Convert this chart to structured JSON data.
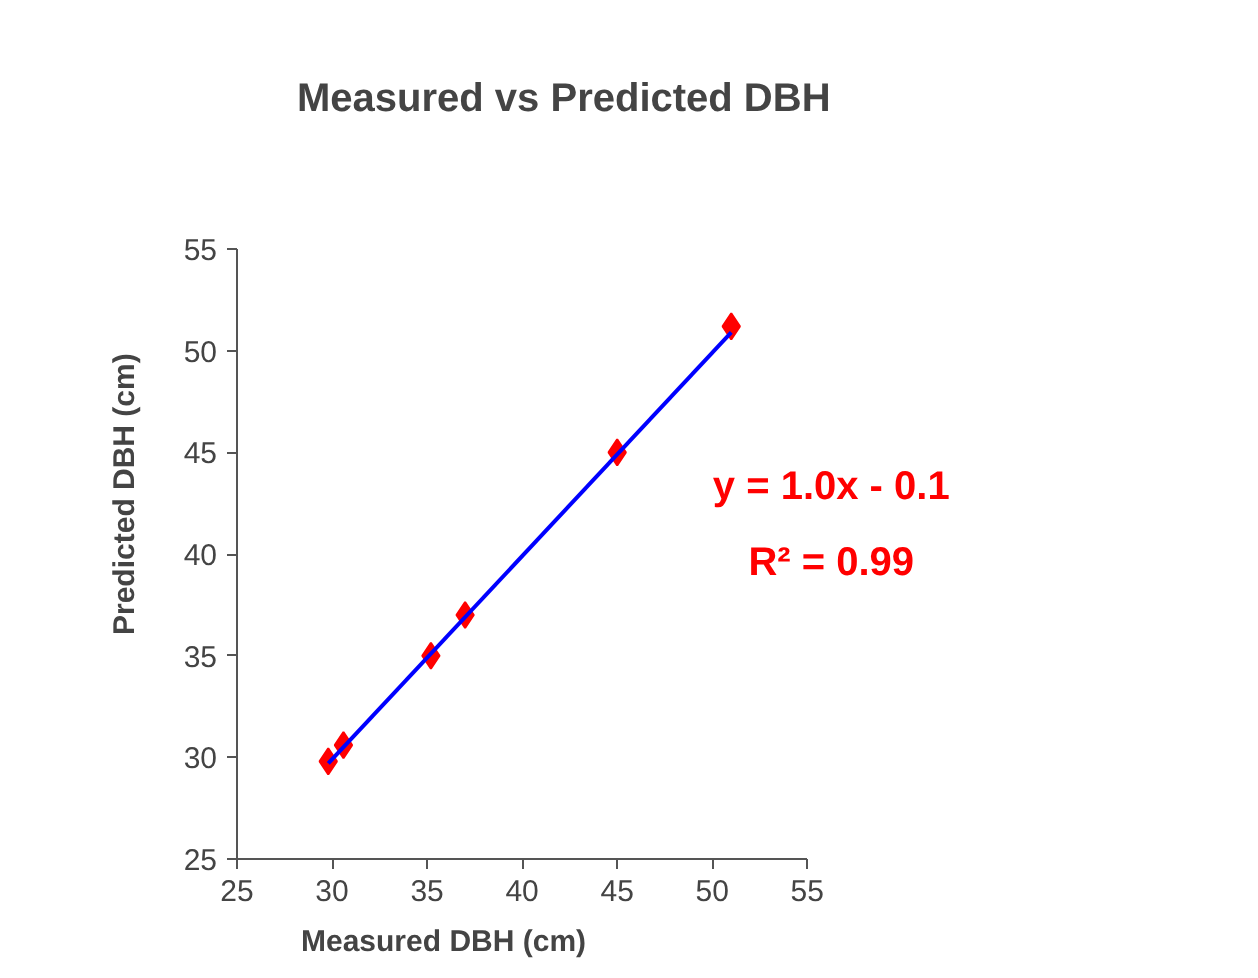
{
  "chart_data": {
    "type": "scatter",
    "title": "Measured vs Predicted DBH",
    "xlabel": "Measured  DBH (cm)",
    "ylabel": "Predicted  DBH (cm)",
    "xlim": [
      25,
      55
    ],
    "ylim": [
      25,
      55
    ],
    "xticks": [
      25,
      30,
      35,
      40,
      45,
      50,
      55
    ],
    "yticks": [
      25,
      30,
      35,
      40,
      45,
      50,
      55
    ],
    "grid": false,
    "series": [
      {
        "color": "#ff0000",
        "marker": "diamond",
        "x": [
          29.8,
          30.6,
          35.2,
          37.0,
          45.0,
          51.0
        ],
        "values": [
          29.8,
          30.6,
          35.0,
          37.0,
          45.0,
          51.2
        ]
      },
      {
        "type": "line",
        "color": "#0000ff",
        "marker": "none",
        "x": [
          29.8,
          51.0
        ],
        "values": [
          29.7,
          50.9
        ]
      }
    ],
    "annotations": [
      "y = 1.0x - 0.1",
      "R² = 0.99"
    ]
  }
}
